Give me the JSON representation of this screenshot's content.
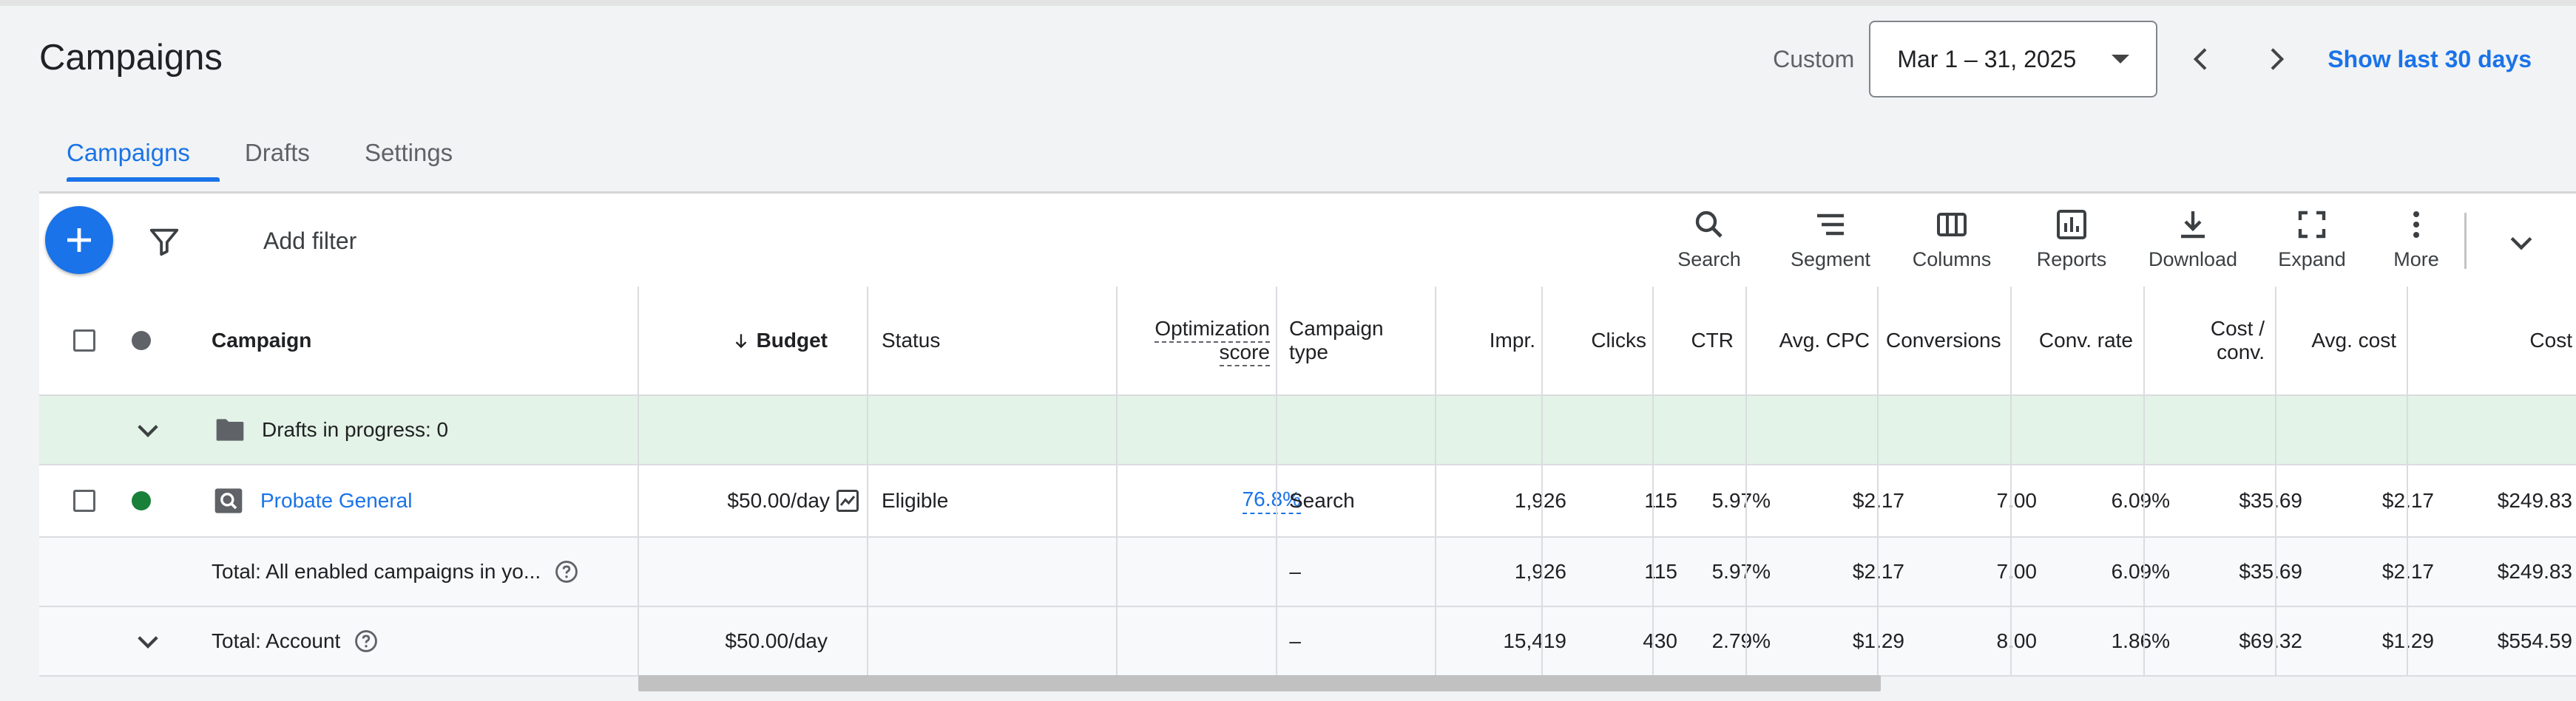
{
  "page": {
    "title": "Campaigns"
  },
  "date_range": {
    "custom_label": "Custom",
    "value": "Mar 1 – 31, 2025",
    "show_last_label": "Show last 30 days"
  },
  "tabs": [
    {
      "label": "Campaigns",
      "active": true
    },
    {
      "label": "Drafts",
      "active": false
    },
    {
      "label": "Settings",
      "active": false
    }
  ],
  "toolbar": {
    "add_filter": "Add filter",
    "tools": [
      {
        "label": "Search",
        "icon": "search-icon"
      },
      {
        "label": "Segment",
        "icon": "segment-icon"
      },
      {
        "label": "Columns",
        "icon": "columns-icon"
      },
      {
        "label": "Reports",
        "icon": "reports-icon"
      },
      {
        "label": "Download",
        "icon": "download-icon"
      },
      {
        "label": "Expand",
        "icon": "expand-icon"
      },
      {
        "label": "More",
        "icon": "more-vert-icon"
      }
    ]
  },
  "table": {
    "headers": {
      "campaign": "Campaign",
      "budget": "Budget",
      "status": "Status",
      "opt_line1": "Optimization",
      "opt_line2": "score",
      "type_line1": "Campaign",
      "type_line2": "type",
      "impr": "Impr.",
      "clicks": "Clicks",
      "ctr": "CTR",
      "avg_cpc": "Avg. CPC",
      "conversions": "Conversions",
      "conv_rate": "Conv. rate",
      "cost_conv_line1": "Cost /",
      "cost_conv_line2": "conv.",
      "avg_cost": "Avg. cost",
      "cost": "Cost"
    },
    "drafts_row": {
      "label": "Drafts in progress: 0"
    },
    "campaign_row": {
      "name": "Probate General",
      "budget": "$50.00/day",
      "status": "Eligible",
      "opt_score": "76.8%",
      "type": "Search",
      "impr": "1,926",
      "clicks": "115",
      "ctr": "5.97%",
      "avg_cpc": "$2.17",
      "conversions": "7.00",
      "conv_rate": "6.09%",
      "cost_conv": "$35.69",
      "avg_cost": "$2.17",
      "cost": "$249.83"
    },
    "total_enabled_row": {
      "label": "Total: All enabled campaigns in yo...",
      "budget": "",
      "opt_score": "–",
      "impr": "1,926",
      "clicks": "115",
      "ctr": "5.97%",
      "avg_cpc": "$2.17",
      "conversions": "7.00",
      "conv_rate": "6.09%",
      "cost_conv": "$35.69",
      "avg_cost": "$2.17",
      "cost": "$249.83"
    },
    "total_account_row": {
      "label": "Total: Account",
      "budget": "$50.00/day",
      "opt_score": "–",
      "impr": "15,419",
      "clicks": "430",
      "ctr": "2.79%",
      "avg_cpc": "$1.29",
      "conversions": "8.00",
      "conv_rate": "1.86%",
      "cost_conv": "$69.32",
      "avg_cost": "$1.29",
      "cost": "$554.59"
    }
  },
  "colors": {
    "accent": "#1a73e8",
    "eligible_dot": "#188038",
    "drafts_bg": "#e3f3e7"
  }
}
